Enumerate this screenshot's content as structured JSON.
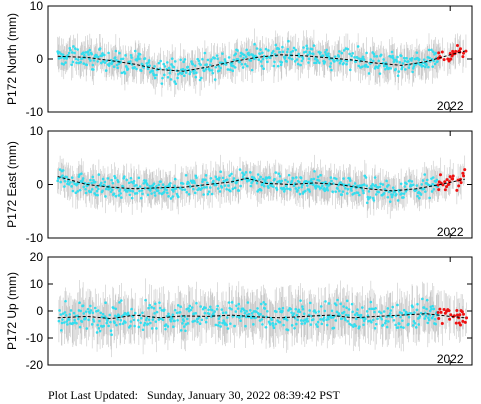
{
  "chart_data": [
    {
      "type": "scatter",
      "ylabel": "P172 North (mm)",
      "ylim": [
        -10,
        10
      ],
      "yticks": [
        10,
        0,
        -10
      ],
      "xrange": [
        2013.7,
        2022.45
      ],
      "xtick_label": "2022",
      "xtick_value": 2022.0,
      "trend": [
        [
          2013.9,
          0.5
        ],
        [
          2014.5,
          0.3
        ],
        [
          2015.0,
          -0.3
        ],
        [
          2015.5,
          -1.0
        ],
        [
          2016.0,
          -2.0
        ],
        [
          2016.5,
          -2.3
        ],
        [
          2017.0,
          -1.5
        ],
        [
          2017.5,
          -0.5
        ],
        [
          2018.0,
          0.3
        ],
        [
          2018.5,
          0.8
        ],
        [
          2019.0,
          0.6
        ],
        [
          2019.5,
          0.2
        ],
        [
          2020.0,
          -0.2
        ],
        [
          2020.5,
          -0.8
        ],
        [
          2021.0,
          -1.2
        ],
        [
          2021.5,
          -0.5
        ],
        [
          2022.0,
          0.8
        ],
        [
          2022.3,
          1.5
        ]
      ],
      "series": [
        {
          "color": "#33ddee",
          "x_start": 2013.9,
          "x_end": 2021.75,
          "spread": 1.8,
          "err": 2.5
        },
        {
          "color": "#ee1111",
          "x_start": 2021.75,
          "x_end": 2022.35,
          "spread": 1.2,
          "err": 2.5
        }
      ]
    },
    {
      "type": "scatter",
      "ylabel": "P172 East (mm)",
      "ylim": [
        -10,
        10
      ],
      "yticks": [
        10,
        0,
        -10
      ],
      "xrange": [
        2013.7,
        2022.45
      ],
      "xtick_label": "2022",
      "xtick_value": 2022.0,
      "trend": [
        [
          2013.9,
          1.5
        ],
        [
          2014.5,
          0.0
        ],
        [
          2015.0,
          -0.5
        ],
        [
          2015.5,
          -0.8
        ],
        [
          2016.0,
          -0.6
        ],
        [
          2016.5,
          -0.5
        ],
        [
          2017.0,
          0.0
        ],
        [
          2017.5,
          0.5
        ],
        [
          2017.8,
          1.2
        ],
        [
          2018.2,
          0.2
        ],
        [
          2018.7,
          0.0
        ],
        [
          2019.2,
          0.3
        ],
        [
          2019.7,
          0.0
        ],
        [
          2020.3,
          -0.8
        ],
        [
          2020.8,
          -1.2
        ],
        [
          2021.3,
          -0.8
        ],
        [
          2021.8,
          0.0
        ],
        [
          2022.3,
          1.0
        ]
      ],
      "series": [
        {
          "color": "#33ddee",
          "x_start": 2013.9,
          "x_end": 2021.75,
          "spread": 1.7,
          "err": 2.5
        },
        {
          "color": "#ee1111",
          "x_start": 2021.75,
          "x_end": 2022.35,
          "spread": 1.3,
          "err": 2.5
        }
      ]
    },
    {
      "type": "scatter",
      "ylabel": "P172 Up (mm)",
      "ylim": [
        -20,
        20
      ],
      "yticks": [
        20,
        10,
        0,
        -10,
        -20
      ],
      "xrange": [
        2013.7,
        2022.45
      ],
      "xtick_label": "2022",
      "xtick_value": 2022.0,
      "trend": [
        [
          2013.9,
          -2.5
        ],
        [
          2014.5,
          -2.0
        ],
        [
          2015.0,
          -2.8
        ],
        [
          2015.5,
          -1.5
        ],
        [
          2016.0,
          -2.5
        ],
        [
          2016.5,
          -1.8
        ],
        [
          2017.0,
          -2.0
        ],
        [
          2017.5,
          -1.5
        ],
        [
          2018.0,
          -2.2
        ],
        [
          2018.5,
          -2.5
        ],
        [
          2019.0,
          -2.0
        ],
        [
          2019.5,
          -1.5
        ],
        [
          2020.0,
          -2.5
        ],
        [
          2020.5,
          -2.0
        ],
        [
          2021.0,
          -1.5
        ],
        [
          2021.5,
          -1.0
        ],
        [
          2022.0,
          -2.0
        ],
        [
          2022.3,
          -2.5
        ]
      ],
      "series": [
        {
          "color": "#33ddee",
          "x_start": 2013.9,
          "x_end": 2021.75,
          "spread": 4.5,
          "err": 7
        },
        {
          "color": "#ee1111",
          "x_start": 2021.75,
          "x_end": 2022.35,
          "spread": 3.5,
          "err": 7
        }
      ]
    }
  ],
  "footer": {
    "label": "Plot Last Updated:",
    "timestamp": "Sunday, January 30, 2022 08:39:42 PST"
  }
}
